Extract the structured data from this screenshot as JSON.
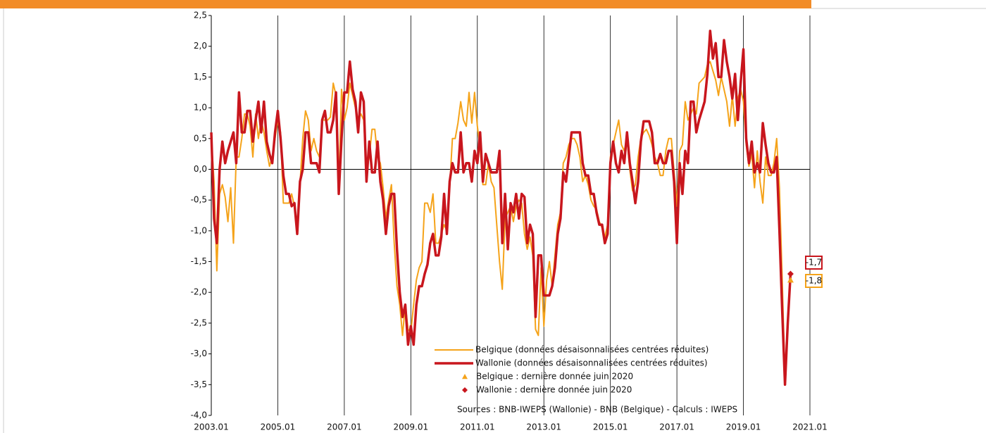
{
  "chart_data": {
    "type": "line",
    "x": [
      "2003-01",
      "2003-02",
      "2003-03",
      "2003-04",
      "2003-05",
      "2003-06",
      "2003-07",
      "2003-08",
      "2003-09",
      "2003-10",
      "2003-11",
      "2003-12",
      "2004-01",
      "2004-02",
      "2004-03",
      "2004-04",
      "2004-05",
      "2004-06",
      "2004-07",
      "2004-08",
      "2004-09",
      "2004-10",
      "2004-11",
      "2004-12",
      "2005-01",
      "2005-02",
      "2005-03",
      "2005-04",
      "2005-05",
      "2005-06",
      "2005-07",
      "2005-08",
      "2005-09",
      "2005-10",
      "2005-11",
      "2005-12",
      "2006-01",
      "2006-02",
      "2006-03",
      "2006-04",
      "2006-05",
      "2006-06",
      "2006-07",
      "2006-08",
      "2006-09",
      "2006-10",
      "2006-11",
      "2006-12",
      "2007-01",
      "2007-02",
      "2007-03",
      "2007-04",
      "2007-05",
      "2007-06",
      "2007-07",
      "2007-08",
      "2007-09",
      "2007-10",
      "2007-11",
      "2007-12",
      "2008-01",
      "2008-02",
      "2008-03",
      "2008-04",
      "2008-05",
      "2008-06",
      "2008-07",
      "2008-08",
      "2008-09",
      "2008-10",
      "2008-11",
      "2008-12",
      "2009-01",
      "2009-02",
      "2009-03",
      "2009-04",
      "2009-05",
      "2009-06",
      "2009-07",
      "2009-08",
      "2009-09",
      "2009-10",
      "2009-11",
      "2009-12",
      "2010-01",
      "2010-02",
      "2010-03",
      "2010-04",
      "2010-05",
      "2010-06",
      "2010-07",
      "2010-08",
      "2010-09",
      "2010-10",
      "2010-11",
      "2010-12",
      "2011-01",
      "2011-02",
      "2011-03",
      "2011-04",
      "2011-05",
      "2011-06",
      "2011-07",
      "2011-08",
      "2011-09",
      "2011-10",
      "2011-11",
      "2011-12",
      "2012-01",
      "2012-02",
      "2012-03",
      "2012-04",
      "2012-05",
      "2012-06",
      "2012-07",
      "2012-08",
      "2012-09",
      "2012-10",
      "2012-11",
      "2012-12",
      "2013-01",
      "2013-02",
      "2013-03",
      "2013-04",
      "2013-05",
      "2013-06",
      "2013-07",
      "2013-08",
      "2013-09",
      "2013-10",
      "2013-11",
      "2013-12",
      "2014-01",
      "2014-02",
      "2014-03",
      "2014-04",
      "2014-05",
      "2014-06",
      "2014-07",
      "2014-08",
      "2014-09",
      "2014-10",
      "2014-11",
      "2014-12",
      "2015-01",
      "2015-02",
      "2015-03",
      "2015-04",
      "2015-05",
      "2015-06",
      "2015-07",
      "2015-08",
      "2015-09",
      "2015-10",
      "2015-11",
      "2015-12",
      "2016-01",
      "2016-02",
      "2016-03",
      "2016-04",
      "2016-05",
      "2016-06",
      "2016-07",
      "2016-08",
      "2016-09",
      "2016-10",
      "2016-11",
      "2016-12",
      "2017-01",
      "2017-02",
      "2017-03",
      "2017-04",
      "2017-05",
      "2017-06",
      "2017-07",
      "2017-08",
      "2017-09",
      "2017-10",
      "2017-11",
      "2017-12",
      "2018-01",
      "2018-02",
      "2018-03",
      "2018-04",
      "2018-05",
      "2018-06",
      "2018-07",
      "2018-08",
      "2018-09",
      "2018-10",
      "2018-11",
      "2018-12",
      "2019-01",
      "2019-02",
      "2019-03",
      "2019-04",
      "2019-05",
      "2019-06",
      "2019-07",
      "2019-08",
      "2019-09",
      "2019-10",
      "2019-11",
      "2019-12",
      "2020-01",
      "2020-02",
      "2020-03",
      "2020-04",
      "2020-05",
      "2020-06"
    ],
    "series": [
      {
        "name": "Belgique (données désaisonnalisées centrées réduites)",
        "color": "#f5a31a",
        "width": 2,
        "values": [
          0.5,
          -0.2,
          -1.65,
          -0.4,
          -0.25,
          -0.45,
          -0.85,
          -0.3,
          -1.2,
          0.2,
          0.2,
          0.5,
          0.9,
          0.9,
          0.7,
          0.2,
          0.9,
          0.5,
          0.8,
          0.6,
          0.3,
          0.05,
          0.2,
          0.5,
          0.8,
          0.6,
          -0.55,
          -0.55,
          -0.55,
          -0.4,
          -0.6,
          -0.9,
          -0.25,
          0.5,
          0.95,
          0.8,
          0.3,
          0.5,
          0.3,
          0.2,
          0.8,
          0.8,
          0.8,
          0.85,
          1.4,
          1.2,
          -0.3,
          1.3,
          0.8,
          1.0,
          1.4,
          1.2,
          1.0,
          0.8,
          0.9,
          0.8,
          0.0,
          0.2,
          0.65,
          0.65,
          0.2,
          0.1,
          -0.3,
          -0.8,
          -0.5,
          -0.25,
          -1.2,
          -1.9,
          -2.2,
          -2.7,
          -2.2,
          -2.6,
          -2.65,
          -2.2,
          -1.8,
          -1.6,
          -1.5,
          -0.55,
          -0.55,
          -0.7,
          -0.4,
          -1.2,
          -1.2,
          -1.05,
          -0.9,
          -1.0,
          -0.3,
          0.5,
          0.5,
          0.75,
          1.1,
          0.8,
          0.7,
          1.25,
          0.75,
          1.25,
          0.7,
          0.35,
          -0.25,
          -0.25,
          0.1,
          -0.2,
          -0.3,
          -0.9,
          -1.5,
          -1.95,
          -0.8,
          -0.7,
          -0.6,
          -0.85,
          -0.6,
          -0.5,
          -0.55,
          -1.05,
          -1.3,
          -1.1,
          -1.4,
          -2.6,
          -2.7,
          -1.6,
          -2.55,
          -1.8,
          -1.5,
          -1.9,
          -1.4,
          -0.9,
          -0.7,
          0.1,
          0.2,
          0.4,
          0.5,
          0.5,
          0.4,
          0.2,
          -0.2,
          -0.1,
          -0.25,
          -0.5,
          -0.6,
          -0.65,
          -0.85,
          -0.95,
          -1.1,
          -0.9,
          0.2,
          0.4,
          0.6,
          0.8,
          0.4,
          0.3,
          0.5,
          0.0,
          -0.35,
          -0.25,
          0.2,
          0.5,
          0.6,
          0.65,
          0.55,
          0.4,
          0.2,
          0.1,
          -0.1,
          -0.1,
          0.3,
          0.5,
          0.5,
          -0.05,
          -0.6,
          0.3,
          0.4,
          1.1,
          0.8,
          0.9,
          1.0,
          0.9,
          1.4,
          1.45,
          1.5,
          1.7,
          1.75,
          1.6,
          1.45,
          1.2,
          1.5,
          1.3,
          1.1,
          0.7,
          1.2,
          0.7,
          1.15,
          1.3,
          1.1,
          0.4,
          0.05,
          0.25,
          -0.3,
          0.3,
          -0.2,
          -0.55,
          0.2,
          -0.1,
          -0.1,
          0.1,
          0.5,
          -0.3,
          -1.8,
          -3.4,
          -2.5,
          -1.8
        ]
      },
      {
        "name": "Wallonie (données désaisonnalisées centrées réduites)",
        "color": "#c8161d",
        "width": 3.5,
        "values": [
          0.6,
          -0.8,
          -1.2,
          0.0,
          0.45,
          0.1,
          0.3,
          0.45,
          0.6,
          0.1,
          1.25,
          0.6,
          0.6,
          0.95,
          0.95,
          0.45,
          0.8,
          1.1,
          0.6,
          1.1,
          0.45,
          0.25,
          0.1,
          0.6,
          0.95,
          0.5,
          -0.1,
          -0.4,
          -0.4,
          -0.6,
          -0.55,
          -1.05,
          -0.2,
          0.0,
          0.6,
          0.6,
          0.1,
          0.1,
          0.1,
          -0.05,
          0.8,
          0.95,
          0.6,
          0.6,
          0.8,
          1.25,
          -0.4,
          0.5,
          1.25,
          1.25,
          1.75,
          1.3,
          1.1,
          0.6,
          1.25,
          1.1,
          -0.2,
          0.45,
          -0.05,
          -0.05,
          0.45,
          -0.2,
          -0.5,
          -1.05,
          -0.6,
          -0.4,
          -0.4,
          -1.3,
          -2.0,
          -2.4,
          -2.2,
          -2.85,
          -2.55,
          -2.85,
          -2.2,
          -1.9,
          -1.9,
          -1.7,
          -1.55,
          -1.2,
          -1.05,
          -1.4,
          -1.4,
          -1.1,
          -0.4,
          -1.05,
          -0.2,
          0.1,
          -0.05,
          -0.05,
          0.6,
          -0.05,
          0.1,
          0.1,
          -0.2,
          0.3,
          0.1,
          0.6,
          -0.2,
          0.25,
          0.1,
          -0.05,
          -0.05,
          -0.05,
          0.3,
          -1.2,
          -0.4,
          -1.3,
          -0.55,
          -0.7,
          -0.4,
          -0.8,
          -0.4,
          -0.45,
          -1.2,
          -0.9,
          -1.05,
          -2.4,
          -1.4,
          -1.4,
          -2.05,
          -2.05,
          -2.05,
          -1.9,
          -1.6,
          -1.05,
          -0.8,
          -0.05,
          -0.2,
          0.2,
          0.6,
          0.6,
          0.6,
          0.6,
          0.1,
          -0.1,
          -0.1,
          -0.4,
          -0.4,
          -0.7,
          -0.9,
          -0.9,
          -1.2,
          -1.05,
          0.1,
          0.45,
          0.1,
          -0.05,
          0.3,
          0.1,
          0.6,
          0.1,
          -0.2,
          -0.55,
          -0.2,
          0.45,
          0.78,
          0.78,
          0.78,
          0.6,
          0.1,
          0.1,
          0.25,
          0.1,
          0.1,
          0.3,
          0.3,
          -0.2,
          -1.2,
          0.1,
          -0.4,
          0.3,
          0.1,
          1.1,
          1.1,
          0.6,
          0.8,
          0.95,
          1.1,
          1.55,
          2.25,
          1.8,
          2.05,
          1.5,
          1.5,
          2.1,
          1.75,
          1.5,
          1.15,
          1.55,
          0.8,
          1.4,
          1.95,
          0.5,
          0.1,
          0.45,
          -0.05,
          0.1,
          -0.05,
          0.75,
          0.4,
          0.1,
          -0.05,
          -0.05,
          0.2,
          -1.0,
          -2.3,
          -3.5,
          -2.5,
          -1.7
        ]
      }
    ],
    "markers": [
      {
        "name": "Belgique : dernière donnée juin 2020",
        "color": "#f5a31a",
        "shape": "triangle",
        "x": [
          "2020-06"
        ],
        "values": [
          -1.8
        ],
        "value_labels": [
          "-1,8"
        ]
      },
      {
        "name": "Wallonie : dernière donnée juin 2020",
        "color": "#c8161d",
        "shape": "diamond",
        "x": [
          "2020-06"
        ],
        "values": [
          -1.7
        ],
        "value_labels": [
          "-1,7"
        ]
      }
    ],
    "sources": "Sources : BNB-IWEPS (Wallonie) - BNB (Belgique) - Calculs : IWEPS",
    "xlim": [
      "2003-01",
      "2021-01"
    ],
    "xticks": [
      {
        "value": "2003-01",
        "label": "2003.01"
      },
      {
        "value": "2005-01",
        "label": "2005.01"
      },
      {
        "value": "2007-01",
        "label": "2007.01"
      },
      {
        "value": "2009-01",
        "label": "2009.01"
      },
      {
        "value": "2011-01",
        "label": "2011.01"
      },
      {
        "value": "2013-01",
        "label": "2013.01"
      },
      {
        "value": "2015-01",
        "label": "2015.01"
      },
      {
        "value": "2017-01",
        "label": "2017.01"
      },
      {
        "value": "2019-01",
        "label": "2019.01"
      },
      {
        "value": "2021-01",
        "label": "2021.01"
      }
    ],
    "ylim": [
      -4.0,
      2.5
    ],
    "yticks": [
      {
        "value": 2.5,
        "label": "2,5"
      },
      {
        "value": 2.0,
        "label": "2,0"
      },
      {
        "value": 1.5,
        "label": "1,5"
      },
      {
        "value": 1.0,
        "label": "1,0"
      },
      {
        "value": 0.5,
        "label": "0,5"
      },
      {
        "value": 0,
        "label": "0,0"
      },
      {
        "value": -0.5,
        "label": "-0,5"
      },
      {
        "value": -1.0,
        "label": "-1,0"
      },
      {
        "value": -1.5,
        "label": "-1,5"
      },
      {
        "value": -2.0,
        "label": "-2,0"
      },
      {
        "value": -2.5,
        "label": "-2,5"
      },
      {
        "value": -3.0,
        "label": "-3,0"
      },
      {
        "value": -3.5,
        "label": "-3,5"
      },
      {
        "value": -4.0,
        "label": "-4,0"
      }
    ],
    "grid": "x"
  }
}
